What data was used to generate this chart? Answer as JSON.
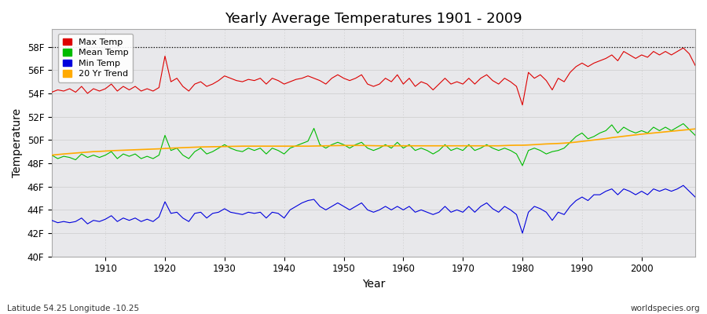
{
  "title": "Yearly Average Temperatures 1901 - 2009",
  "xlabel": "Year",
  "ylabel": "Temperature",
  "bottom_left_label": "Latitude 54.25 Longitude -10.25",
  "bottom_right_label": "worldspecies.org",
  "background_color": "#ffffff",
  "plot_bg_color": "#e8e8eb",
  "ylim": [
    40,
    60
  ],
  "yticks": [
    40,
    42,
    44,
    46,
    48,
    50,
    52,
    54,
    56,
    58
  ],
  "ytick_labels": [
    "40F",
    "42F",
    "44F",
    "46F",
    "48F",
    "50F",
    "52F",
    "54F",
    "56F",
    "58F"
  ],
  "xlim": [
    1901,
    2009
  ],
  "xticks": [
    1910,
    1920,
    1930,
    1940,
    1950,
    1960,
    1970,
    1980,
    1990,
    2000
  ],
  "dotted_line_y": 58,
  "legend_labels": [
    "Max Temp",
    "Mean Temp",
    "Min Temp",
    "20 Yr Trend"
  ],
  "legend_colors": [
    "#dd0000",
    "#00bb00",
    "#0000dd",
    "#ffaa00"
  ],
  "years": [
    1901,
    1902,
    1903,
    1904,
    1905,
    1906,
    1907,
    1908,
    1909,
    1910,
    1911,
    1912,
    1913,
    1914,
    1915,
    1916,
    1917,
    1918,
    1919,
    1920,
    1921,
    1922,
    1923,
    1924,
    1925,
    1926,
    1927,
    1928,
    1929,
    1930,
    1931,
    1932,
    1933,
    1934,
    1935,
    1936,
    1937,
    1938,
    1939,
    1940,
    1941,
    1942,
    1943,
    1944,
    1945,
    1946,
    1947,
    1948,
    1949,
    1950,
    1951,
    1952,
    1953,
    1954,
    1955,
    1956,
    1957,
    1958,
    1959,
    1960,
    1961,
    1962,
    1963,
    1964,
    1965,
    1966,
    1967,
    1968,
    1969,
    1970,
    1971,
    1972,
    1973,
    1974,
    1975,
    1976,
    1977,
    1978,
    1979,
    1980,
    1981,
    1982,
    1983,
    1984,
    1985,
    1986,
    1987,
    1988,
    1989,
    1990,
    1991,
    1992,
    1993,
    1994,
    1995,
    1996,
    1997,
    1998,
    1999,
    2000,
    2001,
    2002,
    2003,
    2004,
    2005,
    2006,
    2007,
    2008,
    2009
  ],
  "max_temp": [
    54.1,
    54.3,
    54.2,
    54.4,
    54.1,
    54.6,
    54.0,
    54.4,
    54.2,
    54.4,
    54.8,
    54.2,
    54.6,
    54.3,
    54.6,
    54.2,
    54.4,
    54.2,
    54.5,
    57.2,
    55.0,
    55.3,
    54.6,
    54.2,
    54.8,
    55.0,
    54.6,
    54.8,
    55.1,
    55.5,
    55.3,
    55.1,
    55.0,
    55.2,
    55.1,
    55.3,
    54.8,
    55.3,
    55.1,
    54.8,
    55.0,
    55.2,
    55.3,
    55.5,
    55.3,
    55.1,
    54.8,
    55.3,
    55.6,
    55.3,
    55.1,
    55.3,
    55.6,
    54.8,
    54.6,
    54.8,
    55.3,
    55.0,
    55.6,
    54.8,
    55.3,
    54.6,
    55.0,
    54.8,
    54.3,
    54.8,
    55.3,
    54.8,
    55.0,
    54.8,
    55.3,
    54.8,
    55.3,
    55.6,
    55.1,
    54.8,
    55.3,
    55.0,
    54.6,
    53.0,
    55.8,
    55.3,
    55.6,
    55.1,
    54.3,
    55.3,
    55.0,
    55.8,
    56.3,
    56.6,
    56.3,
    56.6,
    56.8,
    57.0,
    57.3,
    56.8,
    57.6,
    57.3,
    57.0,
    57.3,
    57.1,
    57.6,
    57.3,
    57.6,
    57.3,
    57.6,
    57.9,
    57.4,
    56.4
  ],
  "mean_temp": [
    48.7,
    48.4,
    48.6,
    48.5,
    48.3,
    48.8,
    48.5,
    48.7,
    48.5,
    48.7,
    49.0,
    48.4,
    48.8,
    48.6,
    48.8,
    48.4,
    48.6,
    48.4,
    48.7,
    50.4,
    49.1,
    49.3,
    48.7,
    48.4,
    49.0,
    49.3,
    48.8,
    49.0,
    49.3,
    49.6,
    49.3,
    49.1,
    49.0,
    49.3,
    49.1,
    49.3,
    48.8,
    49.3,
    49.1,
    48.8,
    49.3,
    49.5,
    49.7,
    49.9,
    51.0,
    49.6,
    49.3,
    49.6,
    49.8,
    49.6,
    49.3,
    49.6,
    49.8,
    49.3,
    49.1,
    49.3,
    49.6,
    49.3,
    49.8,
    49.3,
    49.6,
    49.1,
    49.3,
    49.1,
    48.8,
    49.1,
    49.6,
    49.1,
    49.3,
    49.1,
    49.6,
    49.1,
    49.3,
    49.6,
    49.3,
    49.1,
    49.3,
    49.1,
    48.8,
    47.8,
    49.1,
    49.3,
    49.1,
    48.8,
    49.0,
    49.1,
    49.3,
    49.8,
    50.3,
    50.6,
    50.1,
    50.3,
    50.6,
    50.8,
    51.3,
    50.6,
    51.1,
    50.8,
    50.6,
    50.8,
    50.6,
    51.1,
    50.8,
    51.1,
    50.8,
    51.1,
    51.4,
    50.9,
    50.4
  ],
  "min_temp": [
    43.1,
    42.9,
    43.0,
    42.9,
    43.0,
    43.3,
    42.8,
    43.1,
    43.0,
    43.2,
    43.5,
    43.0,
    43.3,
    43.1,
    43.3,
    43.0,
    43.2,
    43.0,
    43.4,
    44.7,
    43.7,
    43.8,
    43.3,
    43.0,
    43.7,
    43.8,
    43.3,
    43.7,
    43.8,
    44.1,
    43.8,
    43.7,
    43.6,
    43.8,
    43.7,
    43.8,
    43.3,
    43.8,
    43.7,
    43.3,
    44.0,
    44.3,
    44.6,
    44.8,
    44.9,
    44.3,
    44.0,
    44.3,
    44.6,
    44.3,
    44.0,
    44.3,
    44.6,
    44.0,
    43.8,
    44.0,
    44.3,
    44.0,
    44.3,
    44.0,
    44.3,
    43.8,
    44.0,
    43.8,
    43.6,
    43.8,
    44.3,
    43.8,
    44.0,
    43.8,
    44.3,
    43.8,
    44.3,
    44.6,
    44.1,
    43.8,
    44.3,
    44.0,
    43.6,
    42.0,
    43.8,
    44.3,
    44.1,
    43.8,
    43.1,
    43.8,
    43.6,
    44.3,
    44.8,
    45.1,
    44.8,
    45.3,
    45.3,
    45.6,
    45.8,
    45.3,
    45.8,
    45.6,
    45.3,
    45.6,
    45.3,
    45.8,
    45.6,
    45.8,
    45.6,
    45.8,
    46.1,
    45.6,
    45.1
  ],
  "trend_temp": [
    48.7,
    48.75,
    48.8,
    48.84,
    48.88,
    48.92,
    48.96,
    49.0,
    49.02,
    49.05,
    49.08,
    49.1,
    49.12,
    49.14,
    49.16,
    49.18,
    49.2,
    49.22,
    49.24,
    49.27,
    49.3,
    49.32,
    49.34,
    49.36,
    49.38,
    49.4,
    49.41,
    49.42,
    49.43,
    49.44,
    49.45,
    49.46,
    49.47,
    49.47,
    49.47,
    49.47,
    49.47,
    49.47,
    49.47,
    49.47,
    49.47,
    49.47,
    49.47,
    49.47,
    49.48,
    49.49,
    49.5,
    49.51,
    49.52,
    49.53,
    49.53,
    49.53,
    49.53,
    49.52,
    49.51,
    49.5,
    49.5,
    49.5,
    49.5,
    49.5,
    49.5,
    49.5,
    49.5,
    49.5,
    49.5,
    49.5,
    49.5,
    49.5,
    49.5,
    49.5,
    49.5,
    49.5,
    49.5,
    49.5,
    49.5,
    49.5,
    49.52,
    49.54,
    49.55,
    49.55,
    49.57,
    49.6,
    49.63,
    49.66,
    49.68,
    49.7,
    49.73,
    49.77,
    49.82,
    49.88,
    49.94,
    50.0,
    50.06,
    50.12,
    50.2,
    50.26,
    50.32,
    50.38,
    50.44,
    50.5,
    50.55,
    50.6,
    50.65,
    50.7,
    50.75,
    50.8,
    50.85,
    50.9,
    50.95
  ]
}
